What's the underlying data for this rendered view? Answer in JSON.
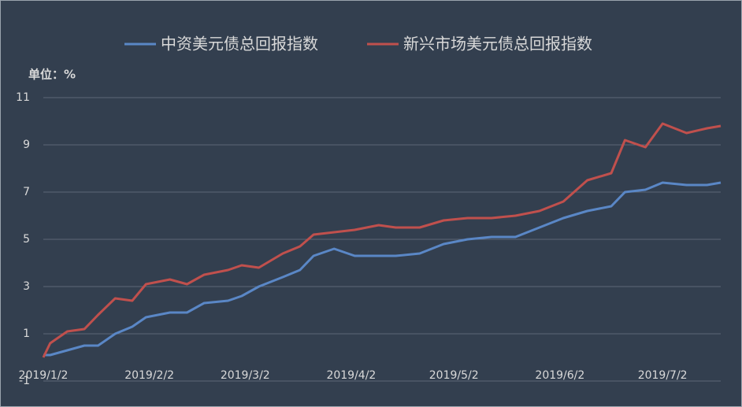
{
  "chart_data": {
    "type": "line",
    "unit_label": "单位：%",
    "x": [
      "2019/1/2",
      "2019/1/4",
      "2019/1/9",
      "2019/1/14",
      "2019/1/18",
      "2019/1/23",
      "2019/1/28",
      "2019/2/1",
      "2019/2/8",
      "2019/2/13",
      "2019/2/18",
      "2019/2/25",
      "2019/3/1",
      "2019/3/6",
      "2019/3/13",
      "2019/3/18",
      "2019/3/22",
      "2019/3/28",
      "2019/4/3",
      "2019/4/10",
      "2019/4/15",
      "2019/4/22",
      "2019/4/29",
      "2019/5/6",
      "2019/5/13",
      "2019/5/20",
      "2019/5/27",
      "2019/6/3",
      "2019/6/10",
      "2019/6/17",
      "2019/6/21",
      "2019/6/27",
      "2019/7/2",
      "2019/7/9",
      "2019/7/15",
      "2019/7/19"
    ],
    "series": [
      {
        "name": "中资美元债总回报指数",
        "color": "#5a87c6",
        "values": [
          0.1,
          0.1,
          0.3,
          0.5,
          0.5,
          1.0,
          1.3,
          1.7,
          1.9,
          1.9,
          2.3,
          2.4,
          2.6,
          3.0,
          3.4,
          3.7,
          4.3,
          4.6,
          4.3,
          4.3,
          4.3,
          4.4,
          4.8,
          5.0,
          5.1,
          5.1,
          5.5,
          5.9,
          6.2,
          6.4,
          7.0,
          7.1,
          7.4,
          7.3,
          7.3,
          7.4
        ]
      },
      {
        "name": "新兴市场美元债总回报指数",
        "color": "#c0504d",
        "values": [
          0,
          0.6,
          1.1,
          1.2,
          1.8,
          2.5,
          2.4,
          3.1,
          3.3,
          3.1,
          3.5,
          3.7,
          3.9,
          3.8,
          4.4,
          4.7,
          5.2,
          5.3,
          5.4,
          5.6,
          5.5,
          5.5,
          5.8,
          5.9,
          5.9,
          6.0,
          6.2,
          6.6,
          7.5,
          7.8,
          9.2,
          8.9,
          9.9,
          9.5,
          9.7,
          9.8
        ]
      }
    ],
    "xlim": [
      "2019/1/2",
      "2019/7/19"
    ],
    "xticks": [
      "2019/1/2",
      "2019/2/2",
      "2019/3/2",
      "2019/4/2",
      "2019/5/2",
      "2019/6/2",
      "2019/7/2"
    ],
    "ylim": [
      -1,
      11
    ],
    "yticks": [
      -1,
      1,
      3,
      5,
      7,
      9,
      11
    ],
    "grid": true,
    "legend": "top"
  }
}
